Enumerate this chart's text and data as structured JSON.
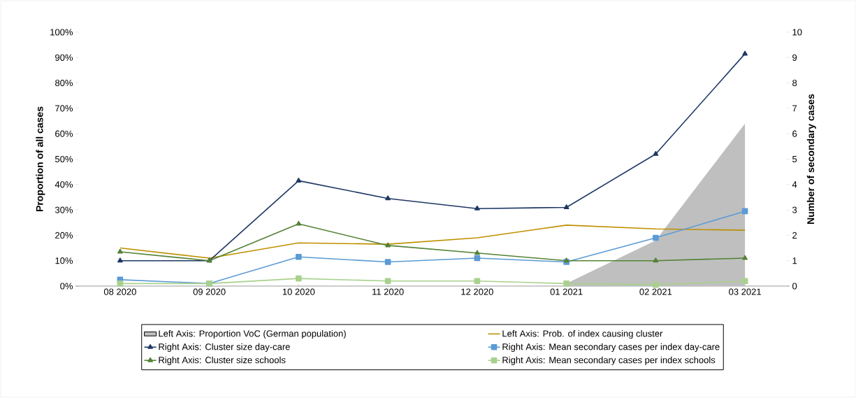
{
  "chart_data": {
    "type": "line",
    "ylabel": "Proportion of all cases",
    "y2label": "Number of secondary cases",
    "categories": [
      "08 2020",
      "09 2020",
      "10 2020",
      "11 2020",
      "12 2020",
      "01 2021",
      "02 2021",
      "03 2021"
    ],
    "ylim": [
      0,
      100
    ],
    "yticks": [
      {
        "value": 0,
        "label": "0%"
      },
      {
        "value": 10,
        "label": "10%"
      },
      {
        "value": 20,
        "label": "20%"
      },
      {
        "value": 30,
        "label": "30%"
      },
      {
        "value": 40,
        "label": "40%"
      },
      {
        "value": 50,
        "label": "50%"
      },
      {
        "value": 60,
        "label": "60%"
      },
      {
        "value": 70,
        "label": "70%"
      },
      {
        "value": 80,
        "label": "80%"
      },
      {
        "value": 90,
        "label": "90%"
      },
      {
        "value": 100,
        "label": "100%"
      }
    ],
    "y2lim": [
      0,
      10
    ],
    "y2ticks": [
      0,
      1,
      2,
      3,
      4,
      5,
      6,
      7,
      8,
      9,
      10
    ],
    "legend": "bottom",
    "series": [
      {
        "name": "Left Axis: Proportion VoC (German population)",
        "type": "area",
        "color": "#bfbfbf",
        "marker": "none",
        "values": [
          null,
          null,
          null,
          null,
          null,
          1,
          18,
          64
        ]
      },
      {
        "name": "Left Axis: Prob. of index causing cluster",
        "color": "#bf9000",
        "marker": "none",
        "values": [
          15,
          11,
          17,
          16.5,
          19,
          24,
          22.5,
          22
        ]
      },
      {
        "name": "Right Axis: Cluster size day-care",
        "axis": "y2",
        "color": "#1f3864",
        "marker": "triangle",
        "values": [
          1.0,
          1.0,
          4.15,
          3.45,
          3.05,
          3.1,
          5.2,
          9.15
        ]
      },
      {
        "name": "Right Axis: Mean secondary cases per index day-care",
        "axis": "y2",
        "color": "#5b9bd5",
        "marker": "square",
        "values": [
          0.25,
          0.1,
          1.15,
          0.95,
          1.1,
          0.95,
          1.9,
          2.95
        ]
      },
      {
        "name": "Right Axis: Cluster size schools",
        "axis": "y2",
        "color": "#548235",
        "marker": "triangle",
        "values": [
          1.35,
          1.0,
          2.45,
          1.6,
          1.3,
          1.0,
          1.0,
          1.1
        ]
      },
      {
        "name": "Right Axis: Mean secondary cases per index schools",
        "axis": "y2",
        "color": "#a9d18e",
        "marker": "square",
        "values": [
          0.1,
          0.1,
          0.3,
          0.2,
          0.2,
          0.1,
          0.05,
          0.2
        ]
      }
    ]
  }
}
